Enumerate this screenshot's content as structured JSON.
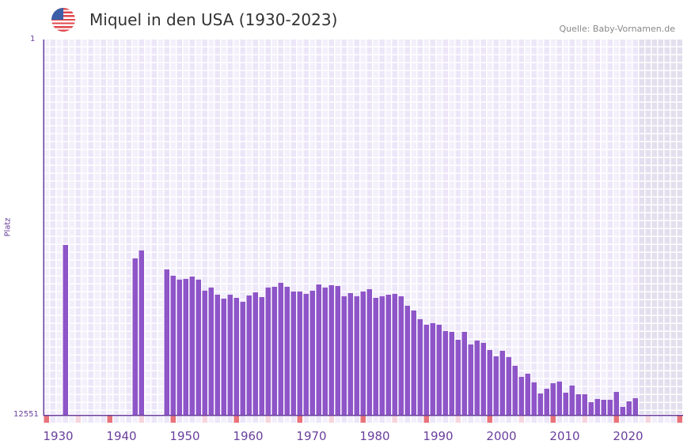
{
  "header": {
    "title": "Miquel in den USA (1930-2023)",
    "source": "Quelle: Baby-Vornamen.de",
    "flag_icon": "us-flag-icon"
  },
  "colors": {
    "bar": "#8e55c8",
    "decade_marker": "#e8737a",
    "half_decade_marker": "#f6d6de",
    "grid_a": "#f3f0fb",
    "grid_b": "#ece6f8",
    "future_bg": "#e3dfee",
    "axis": "#6a3f9c"
  },
  "chart_data": {
    "type": "bar",
    "title": "Miquel in den USA (1930-2023)",
    "xlabel": "",
    "ylabel": "Platz",
    "ylim": [
      1,
      12551
    ],
    "y_inverted": true,
    "y_ticks": [
      "1",
      "12551"
    ],
    "x_ticks": [
      "1930",
      "1940",
      "1950",
      "1960",
      "1970",
      "1980",
      "1990",
      "2000",
      "2010",
      "2020"
    ],
    "x_range": [
      1928,
      2028
    ],
    "future_from": 2022,
    "categories": [
      1930,
      1931,
      1932,
      1933,
      1934,
      1935,
      1936,
      1937,
      1938,
      1939,
      1940,
      1941,
      1942,
      1943,
      1944,
      1945,
      1946,
      1947,
      1948,
      1949,
      1950,
      1951,
      1952,
      1953,
      1954,
      1955,
      1956,
      1957,
      1958,
      1959,
      1960,
      1961,
      1962,
      1963,
      1964,
      1965,
      1966,
      1967,
      1968,
      1969,
      1970,
      1971,
      1972,
      1973,
      1974,
      1975,
      1976,
      1977,
      1978,
      1979,
      1980,
      1981,
      1982,
      1983,
      1984,
      1985,
      1986,
      1987,
      1988,
      1989,
      1990,
      1991,
      1992,
      1993,
      1994,
      1995,
      1996,
      1997,
      1998,
      1999,
      2000,
      2001,
      2002,
      2003,
      2004,
      2005,
      2006,
      2007,
      2008,
      2009,
      2010,
      2011,
      2012,
      2013,
      2014,
      2015,
      2016,
      2017,
      2018,
      2019,
      2020,
      2021
    ],
    "values": [
      null,
      6870,
      null,
      null,
      null,
      null,
      null,
      null,
      null,
      null,
      null,
      null,
      7320,
      7055,
      null,
      null,
      null,
      7690,
      7900,
      8030,
      8006,
      7926,
      8030,
      8400,
      8295,
      8535,
      8666,
      8535,
      8640,
      8772,
      8560,
      8455,
      8614,
      8295,
      8270,
      8138,
      8270,
      8428,
      8428,
      8508,
      8402,
      8191,
      8295,
      8217,
      8244,
      8587,
      8481,
      8587,
      8428,
      8350,
      8640,
      8587,
      8535,
      8508,
      8587,
      8904,
      9063,
      9354,
      9538,
      9485,
      9538,
      9750,
      9776,
      10040,
      9776,
      10199,
      10067,
      10146,
      10384,
      10595,
      10410,
      10622,
      10912,
      11282,
      11176,
      11467,
      11837,
      11679,
      11494,
      11441,
      11811,
      11573,
      11864,
      11864,
      12128,
      12022,
      12049,
      12049,
      11785,
      12287,
      12102,
      11996
    ]
  }
}
